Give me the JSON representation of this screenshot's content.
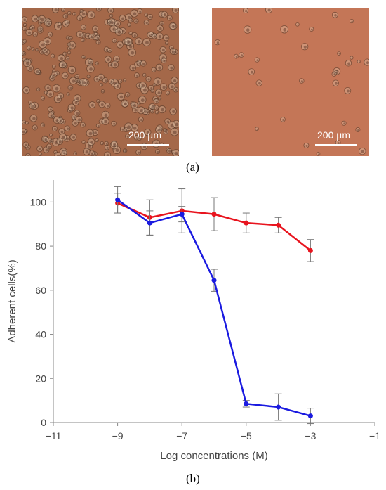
{
  "panels": {
    "left": {
      "scale_bar": "200 µm",
      "description": "dense adherent cells"
    },
    "right": {
      "scale_bar": "200 µm",
      "description": "sparse adherent cells"
    },
    "caption_a": "(a)",
    "caption_b": "(b)"
  },
  "colors": {
    "micrograph_bg_left": "#a46849",
    "micrograph_bg_right": "#c47657",
    "series_red": "#e8141e",
    "series_blue": "#1a1ae0"
  },
  "chart_data": {
    "type": "line",
    "title": "",
    "xlabel": "Log concentrations (M)",
    "ylabel": "Adherent cells(%)",
    "xlim": [
      -11,
      -1
    ],
    "ylim": [
      0,
      110
    ],
    "xticks": [
      "−11",
      "−9",
      "−7",
      "−5",
      "−3",
      "−1"
    ],
    "xtick_values": [
      -11,
      -9,
      -7,
      -5,
      -3,
      -1
    ],
    "yticks": [
      "0",
      "20",
      "40",
      "60",
      "80",
      "100"
    ],
    "ytick_values": [
      0,
      20,
      40,
      60,
      80,
      100
    ],
    "grid": false,
    "legend": "none",
    "series": [
      {
        "color": "#e8141e",
        "x": [
          -9,
          -8,
          -7,
          -6,
          -5,
          -4,
          -3
        ],
        "y": [
          99.5,
          93,
          96,
          94.5,
          90.5,
          89.5,
          78
        ],
        "err": [
          4.5,
          8,
          10,
          7.5,
          4.5,
          3.5,
          5
        ]
      },
      {
        "color": "#1a1ae0",
        "x": [
          -9,
          -8,
          -7,
          -6,
          -5,
          -4,
          -3
        ],
        "y": [
          101,
          90.5,
          94.5,
          64.5,
          8.5,
          7,
          3
        ],
        "err": [
          6,
          5.5,
          3.5,
          5,
          1.5,
          6,
          3.5
        ]
      }
    ]
  }
}
